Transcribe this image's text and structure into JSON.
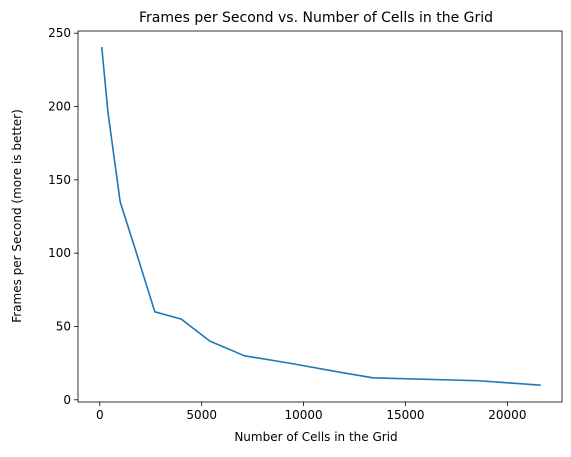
{
  "chart_data": {
    "type": "line",
    "title": "Frames per Second vs. Number of Cells in the Grid",
    "xlabel": "Number of Cells in the Grid",
    "ylabel": "Frames per Second (more is better)",
    "xlim": [
      -1070,
      22680
    ],
    "ylim": [
      -1.5,
      251.5
    ],
    "xticks": [
      0,
      5000,
      10000,
      15000,
      20000
    ],
    "yticks": [
      0,
      50,
      100,
      150,
      200,
      250
    ],
    "grid": false,
    "legend": "none",
    "series": [
      {
        "color": "#1f77b4",
        "x": [
          100,
          400,
          1000,
          1800,
          2700,
          4000,
          5400,
          7100,
          9300,
          11700,
          13400,
          18600,
          21600
        ],
        "y": [
          240,
          196,
          135,
          100,
          60,
          55,
          40,
          30,
          25,
          19,
          15,
          13,
          10
        ]
      }
    ]
  }
}
